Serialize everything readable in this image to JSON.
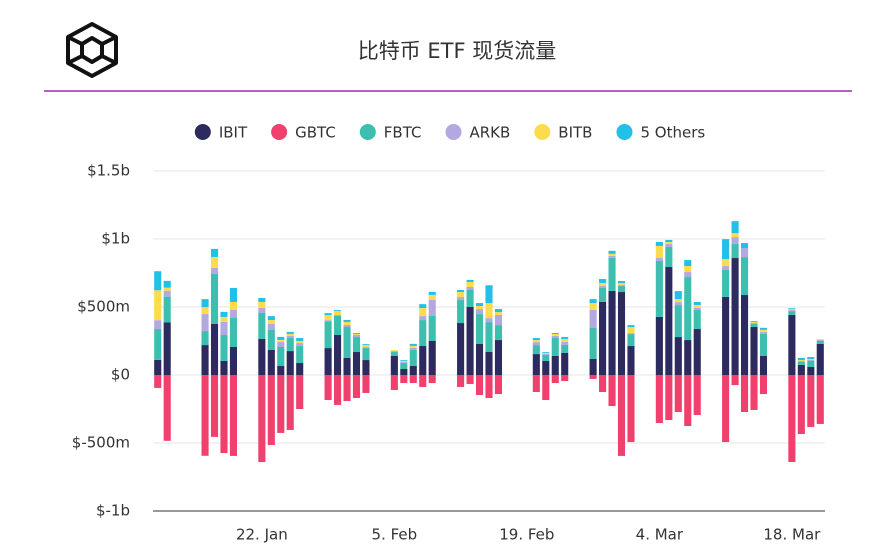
{
  "chart_data": {
    "type": "stacked-bar",
    "title": "比特币 ETF 现货流量",
    "categories": [
      null,
      null,
      null,
      null,
      null,
      null,
      null,
      null,
      null,
      null,
      null,
      "22. Jan",
      null,
      null,
      null,
      null,
      null,
      null,
      null,
      null,
      null,
      null,
      null,
      null,
      null,
      "5. Feb",
      null,
      null,
      null,
      null,
      null,
      null,
      null,
      null,
      null,
      null,
      null,
      null,
      null,
      "19. Feb",
      null,
      null,
      null,
      null,
      null,
      null,
      null,
      null,
      null,
      null,
      null,
      null,
      null,
      "4. Mar",
      null,
      null,
      null,
      null,
      null,
      null,
      null,
      null,
      null,
      null,
      null,
      null,
      null,
      "18. Mar",
      null,
      null,
      null
    ],
    "series": [
      {
        "name": "IBIT",
        "color": "#2c2a5e",
        "values": [
          111,
          386,
          null,
          null,
          null,
          220,
          375,
          103,
          206,
          null,
          null,
          265,
          184,
          66,
          176,
          88,
          null,
          null,
          198,
          294,
          125,
          169,
          110,
          null,
          null,
          140,
          44,
          66,
          213,
          250,
          null,
          null,
          382,
          500,
          228,
          169,
          257,
          null,
          null,
          null,
          154,
          103,
          140,
          162,
          null,
          null,
          118,
          537,
          618,
          610,
          213,
          null,
          null,
          427,
          794,
          279,
          257,
          338,
          null,
          null,
          574,
          860,
          588,
          353,
          140,
          null,
          null,
          441,
          74,
          59,
          228
        ]
      },
      {
        "name": "GBTC",
        "color": "#f0406e",
        "values": [
          -95,
          -484,
          null,
          null,
          null,
          -594,
          -455,
          -574,
          -595,
          null,
          null,
          -640,
          -515,
          -426,
          -404,
          -250,
          null,
          null,
          -184,
          -220,
          -191,
          -169,
          -132,
          null,
          null,
          -110,
          -59,
          -59,
          -88,
          -59,
          null,
          null,
          -88,
          -66,
          -147,
          -169,
          -140,
          null,
          null,
          null,
          -125,
          -184,
          -59,
          -44,
          null,
          null,
          -29,
          -125,
          -228,
          -595,
          -493,
          null,
          null,
          -353,
          -331,
          -272,
          -375,
          -294,
          null,
          null,
          -493,
          -74,
          -272,
          -257,
          -140,
          null,
          null,
          -640,
          -434,
          -382,
          -360
        ]
      },
      {
        "name": "FBTC",
        "color": "#3dbfb0",
        "values": [
          227,
          190,
          null,
          null,
          null,
          103,
          368,
          191,
          213,
          null,
          null,
          191,
          147,
          140,
          96,
          125,
          null,
          null,
          198,
          140,
          228,
          110,
          88,
          null,
          null,
          29,
          44,
          118,
          191,
          184,
          null,
          null,
          169,
          125,
          220,
          220,
          110,
          null,
          null,
          null,
          66,
          44,
          132,
          59,
          null,
          null,
          228,
          103,
          243,
          44,
          88,
          null,
          null,
          412,
          147,
          235,
          463,
          140,
          null,
          null,
          198,
          103,
          279,
          22,
          162,
          null,
          null,
          29,
          22,
          44,
          22
        ]
      },
      {
        "name": "ARKB",
        "color": "#b3a8e0",
        "values": [
          65,
          44,
          null,
          null,
          null,
          125,
          44,
          96,
          59,
          null,
          null,
          37,
          44,
          37,
          15,
          22,
          null,
          null,
          7,
          7,
          15,
          15,
          7,
          null,
          null,
          7,
          7,
          15,
          29,
          118,
          null,
          null,
          22,
          22,
          37,
          29,
          74,
          null,
          null,
          null,
          22,
          7,
          15,
          22,
          null,
          null,
          132,
          15,
          15,
          7,
          7,
          null,
          null,
          22,
          22,
          22,
          37,
          15,
          null,
          null,
          29,
          51,
          66,
          7,
          15,
          null,
          null,
          7,
          7,
          7,
          7
        ]
      },
      {
        "name": "BITB",
        "color": "#fddc4c",
        "values": [
          220,
          22,
          null,
          null,
          null,
          51,
          81,
          37,
          59,
          null,
          null,
          44,
          29,
          15,
          15,
          15,
          null,
          null,
          37,
          29,
          22,
          7,
          15,
          null,
          null,
          7,
          7,
          15,
          59,
          37,
          null,
          null,
          37,
          37,
          22,
          110,
          22,
          null,
          null,
          null,
          15,
          7,
          15,
          22,
          null,
          null,
          51,
          22,
          15,
          15,
          44,
          null,
          null,
          88,
          15,
          22,
          44,
          22,
          null,
          null,
          51,
          29,
          0,
          7,
          15,
          null,
          null,
          7,
          7,
          7,
          7
        ]
      },
      {
        "name": "5 Others",
        "color": "#22c0e8",
        "values": [
          140,
          50,
          null,
          null,
          null,
          59,
          59,
          37,
          103,
          null,
          null,
          29,
          29,
          22,
          15,
          22,
          null,
          null,
          15,
          7,
          15,
          7,
          7,
          null,
          null,
          0,
          7,
          15,
          29,
          22,
          null,
          null,
          15,
          15,
          22,
          132,
          22,
          null,
          null,
          null,
          15,
          7,
          7,
          15,
          null,
          null,
          29,
          29,
          22,
          15,
          15,
          null,
          null,
          29,
          15,
          59,
          44,
          22,
          null,
          null,
          147,
          88,
          37,
          7,
          15,
          null,
          null,
          7,
          15,
          15,
          0
        ]
      }
    ],
    "ylim": [
      -1000,
      1500
    ],
    "yticks": [
      {
        "value": -1000,
        "label": "$-1b"
      },
      {
        "value": -500,
        "label": "$-500m"
      },
      {
        "value": 0,
        "label": "$0"
      },
      {
        "value": 500,
        "label": "$500m"
      },
      {
        "value": 1000,
        "label": "$1b"
      },
      {
        "value": 1500,
        "label": "$1.5b"
      }
    ],
    "grid": true,
    "legend": "top"
  }
}
